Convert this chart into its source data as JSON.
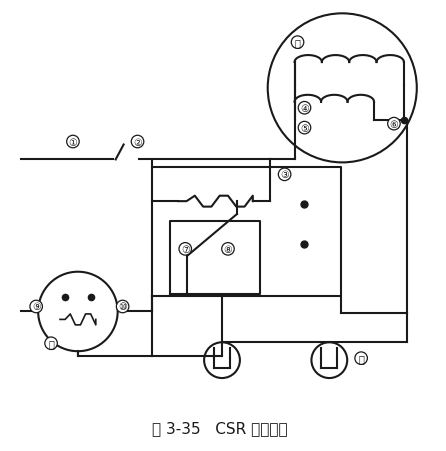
{
  "title": "图 3-35   CSR 检查电路",
  "title_fontsize": 11,
  "fig_width": 4.46,
  "fig_height": 4.52,
  "bg_color": "#ffffff",
  "line_color": "#1a1a1a"
}
